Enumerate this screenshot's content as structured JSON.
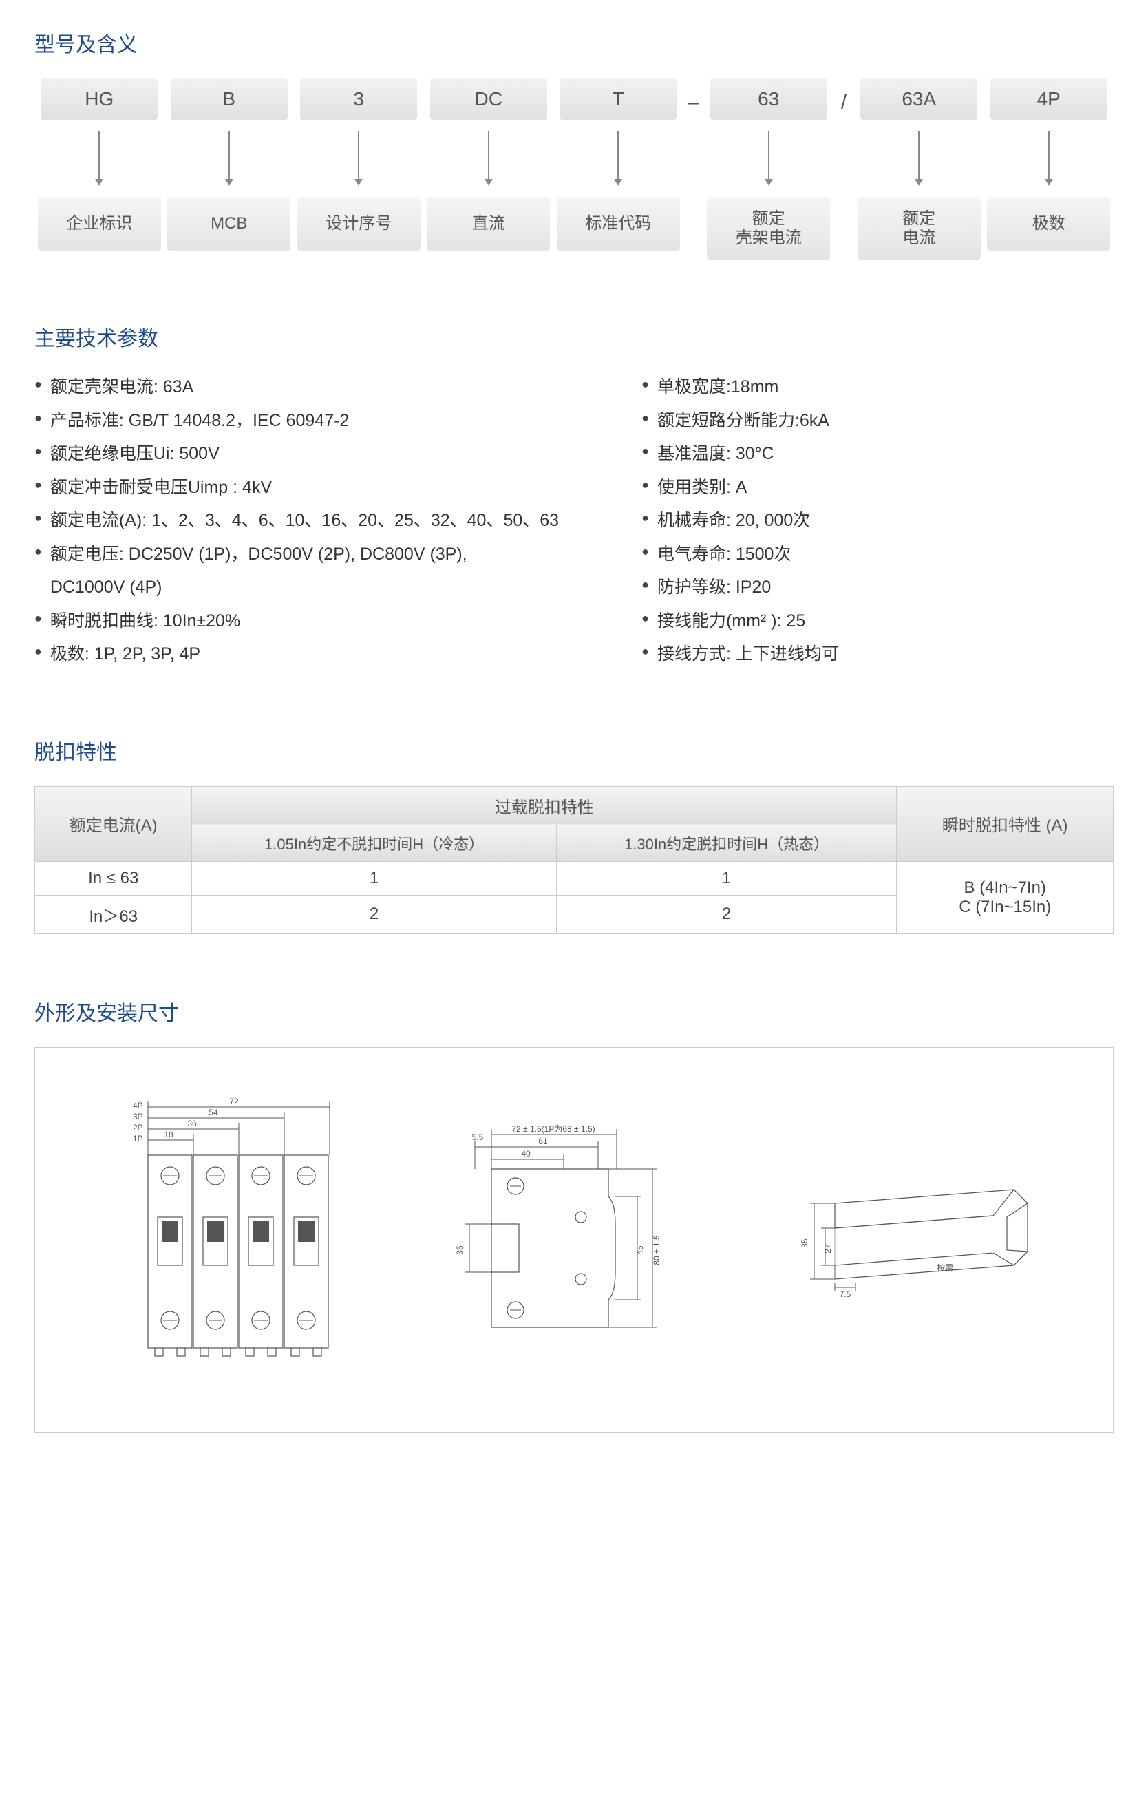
{
  "sections": {
    "model_title": "型号及含义",
    "specs_title": "主要技术参数",
    "trip_title": "脱扣特性",
    "dim_title": "外形及安装尺寸"
  },
  "model": {
    "items": [
      {
        "code": "HG",
        "label": "企业标识"
      },
      {
        "code": "B",
        "label": "MCB"
      },
      {
        "code": "3",
        "label": "设计序号"
      },
      {
        "code": "DC",
        "label": "直流"
      },
      {
        "code": "T",
        "label": "标准代码"
      },
      {
        "code": "63",
        "label": "额定\n壳架电流"
      },
      {
        "code": "63A",
        "label": "额定\n电流"
      },
      {
        "code": "4P",
        "label": "极数"
      }
    ],
    "separators": {
      "after_4": "–",
      "after_5": "/"
    }
  },
  "specs": {
    "left": [
      "额定壳架电流: 63A",
      "产品标准: GB/T 14048.2，IEC 60947-2",
      "额定绝缘电压Ui: 500V",
      "额定冲击耐受电压Uimp : 4kV",
      "额定电流(A): 1、2、3、4、6、10、16、20、25、32、40、50、63",
      "额定电压: DC250V (1P)，DC500V (2P), DC800V (3P),",
      "DC1000V (4P)",
      "瞬时脱扣曲线: 10In±20%",
      "极数: 1P, 2P, 3P, 4P"
    ],
    "left_indent_indices": [
      6
    ],
    "right": [
      "单极宽度:18mm",
      "额定短路分断能力:6kA",
      "基准温度: 30°C",
      "使用类别: A",
      "机械寿命: 20, 000次",
      "电气寿命: 1500次",
      "防护等级: IP20",
      "接线能力(mm² ): 25",
      "接线方式: 上下进线均可"
    ]
  },
  "trip_table": {
    "header": {
      "c0": "额定电流(A)",
      "c1_group": "过载脱扣特性",
      "c1a": "1.05In约定不脱扣时间H（冷态）",
      "c1b": "1.30In约定脱扣时间H（热态）",
      "c2": "瞬时脱扣特性 (A)"
    },
    "rows": [
      {
        "c0": "In ≤ 63",
        "c1a": "1",
        "c1b": "1"
      },
      {
        "c0": "In＞63",
        "c1a": "2",
        "c1b": "2"
      }
    ],
    "c2_lines": [
      "B (4In~7In)",
      "C (7In~15In)"
    ]
  },
  "dimensions": {
    "front": {
      "pole_labels": [
        "4P",
        "3P",
        "2P",
        "1P"
      ],
      "widths": {
        "p1": "18",
        "p2": "36",
        "p3": "54",
        "p4": "72"
      }
    },
    "side": {
      "top_outer": "72 ± 1.5(1P为68 ± 1.5)",
      "top_mid": "61",
      "top_inner": "40",
      "left_gap": "5.5",
      "left_height": "35",
      "right_inner": "45",
      "right_outer": "80 ± 1.5"
    },
    "rail": {
      "h1": "35",
      "h2": "27",
      "base": "7.5",
      "length_label": "按需"
    }
  },
  "colors": {
    "heading": "#1d4b8f",
    "box_bg_top": "#f2f2f2",
    "box_bg_bottom": "#e0e0e0",
    "text": "#333333",
    "border": "#cccccc",
    "arrow": "#888888"
  }
}
